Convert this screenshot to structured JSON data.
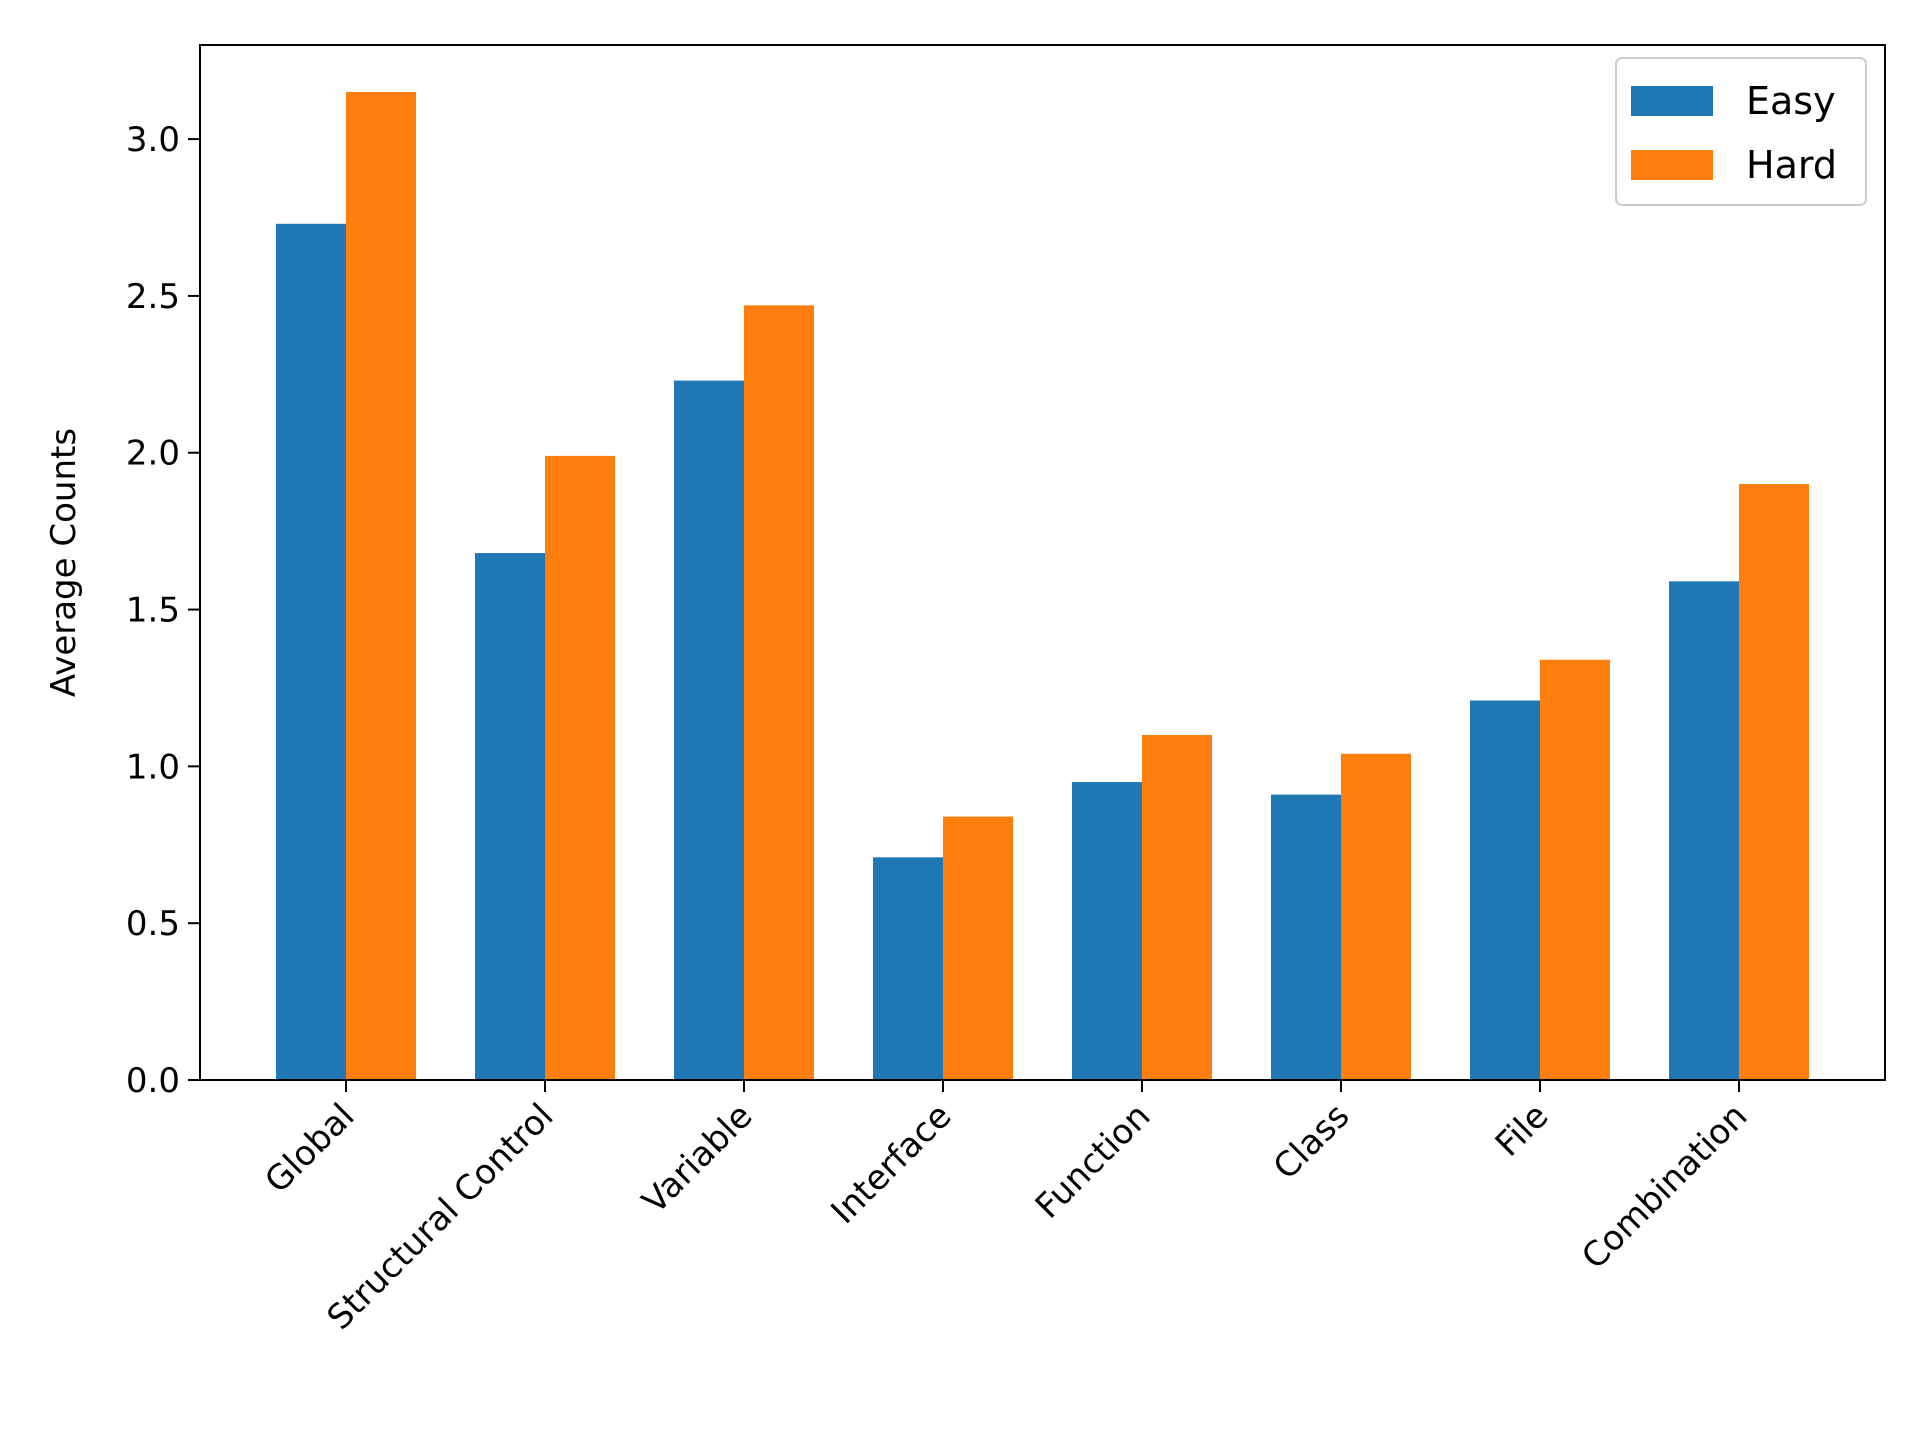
{
  "chart_data": {
    "type": "bar",
    "ylabel": "Average Counts",
    "xlabel": "",
    "title": "",
    "ylim": [
      0,
      3.3
    ],
    "yticks": [
      0.0,
      0.5,
      1.0,
      1.5,
      2.0,
      2.5,
      3.0
    ],
    "ytick_labels": [
      "0.0",
      "0.5",
      "1.0",
      "1.5",
      "2.0",
      "2.5",
      "3.0"
    ],
    "categories": [
      "Global",
      "Structural Control",
      "Variable",
      "Interface",
      "Function",
      "Class",
      "File",
      "Combination"
    ],
    "series": [
      {
        "name": "Easy",
        "color": "#1f77b4",
        "values": [
          2.73,
          1.68,
          2.23,
          0.71,
          0.95,
          0.91,
          1.21,
          1.59
        ]
      },
      {
        "name": "Hard",
        "color": "#ff7f0e",
        "values": [
          3.15,
          1.99,
          2.47,
          0.84,
          1.1,
          1.04,
          1.34,
          1.9
        ]
      }
    ],
    "legend": {
      "position": "top-right",
      "entries": [
        "Easy",
        "Hard"
      ]
    },
    "grid": false
  }
}
